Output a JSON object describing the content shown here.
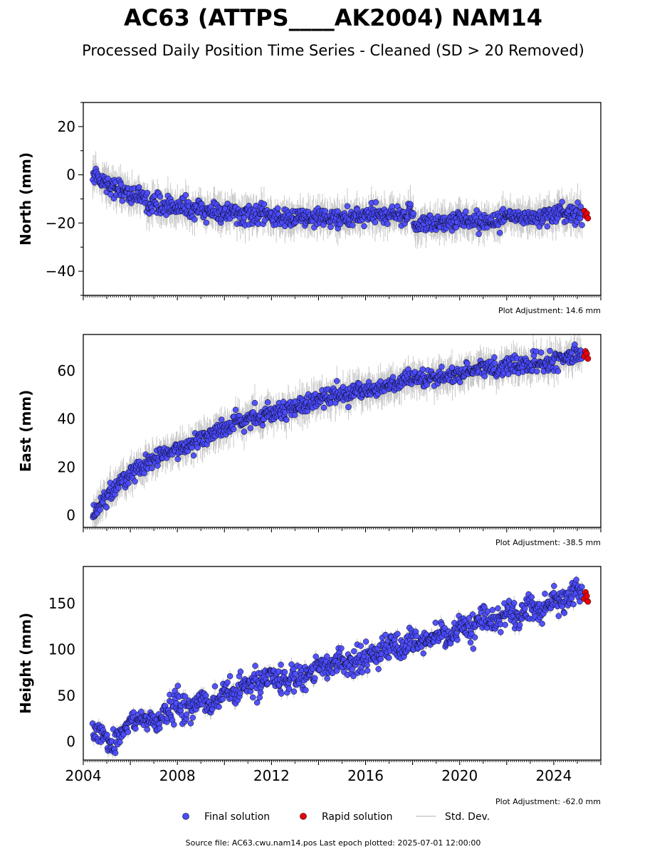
{
  "title": "AC63 (ATTPS____AK2004) NAM14",
  "subtitle": "Processed Daily Position Time Series - Cleaned (SD > 20 Removed)",
  "footer": "Source file: AC63.cwu.nam14.pos  Last epoch plotted: 2025-07-01 12:00:00",
  "legend": {
    "final": "Final solution",
    "rapid": "Rapid solution",
    "std": "Std. Dev."
  },
  "colors": {
    "final": "#4b4bff",
    "rapid": "#e8000b",
    "std": "#c8c8c8",
    "edge": "#000000"
  },
  "chart_data": [
    {
      "type": "scatter",
      "ylabel": "North (mm)",
      "note": "Plot Adjustment: 14.6 mm",
      "xlim": [
        2004.0,
        2026.0
      ],
      "ylim": [
        -50,
        30
      ],
      "yticks": [
        -40,
        -20,
        0,
        20
      ],
      "x_ticks_labeled": false,
      "series": [
        {
          "name": "Final solution",
          "x": [
            2004.4,
            2004.6,
            2004.8,
            2005.0,
            2005.3,
            2005.6,
            2006.0,
            2006.5,
            2007.0,
            2007.5,
            2008.0,
            2008.5,
            2009.0,
            2009.5,
            2010.0,
            2010.5,
            2011.0,
            2011.5,
            2012.0,
            2012.5,
            2013.0,
            2013.5,
            2014.0,
            2014.5,
            2015.0,
            2015.5,
            2016.0,
            2016.5,
            2017.0,
            2017.5,
            2017.9,
            2018.1,
            2018.5,
            2019.0,
            2019.5,
            2020.0,
            2020.5,
            2021.0,
            2021.5,
            2022.0,
            2022.5,
            2023.0,
            2023.5,
            2024.0,
            2024.5,
            2025.0,
            2025.2
          ],
          "y": [
            0.0,
            0.0,
            -2.0,
            -4.0,
            -5.0,
            -6.0,
            -8.0,
            -10.0,
            -12.0,
            -13.0,
            -13.0,
            -14.0,
            -15.0,
            -15.0,
            -16.0,
            -16.0,
            -17.0,
            -17.0,
            -17.0,
            -18.0,
            -18.0,
            -18.0,
            -18.0,
            -18.0,
            -18.0,
            -18.0,
            -17.0,
            -17.0,
            -17.0,
            -17.0,
            -16.0,
            -20.0,
            -20.0,
            -20.0,
            -19.0,
            -19.0,
            -19.0,
            -19.0,
            -19.0,
            -18.0,
            -18.0,
            -17.0,
            -17.0,
            -16.0,
            -16.0,
            -16.0,
            -16.0
          ],
          "scatter": 2.0
        },
        {
          "name": "Rapid solution",
          "x": [
            2025.3,
            2025.35,
            2025.4,
            2025.45
          ],
          "y": [
            -15.0,
            -17.0,
            -16.0,
            -18.0
          ]
        }
      ]
    },
    {
      "type": "scatter",
      "ylabel": "East (mm)",
      "note": "Plot Adjustment: -38.5 mm",
      "xlim": [
        2004.0,
        2026.0
      ],
      "ylim": [
        -5,
        75
      ],
      "yticks": [
        0,
        20,
        40,
        60
      ],
      "x_ticks_labeled": false,
      "series": [
        {
          "name": "Final solution",
          "x": [
            2004.4,
            2004.6,
            2004.8,
            2005.0,
            2005.3,
            2005.6,
            2006.0,
            2006.5,
            2007.0,
            2007.5,
            2008.0,
            2008.5,
            2009.0,
            2009.5,
            2010.0,
            2010.5,
            2011.0,
            2011.5,
            2012.0,
            2012.5,
            2013.0,
            2013.5,
            2014.0,
            2014.5,
            2015.0,
            2015.5,
            2016.0,
            2016.5,
            2017.0,
            2017.5,
            2018.0,
            2018.5,
            2019.0,
            2019.5,
            2020.0,
            2020.5,
            2021.0,
            2021.5,
            2022.0,
            2022.5,
            2023.0,
            2023.5,
            2024.0,
            2024.5,
            2025.0,
            2025.2
          ],
          "y": [
            1.0,
            3.0,
            5.0,
            8.0,
            11.0,
            14.0,
            17.0,
            20.0,
            23.0,
            25.0,
            27.0,
            30.0,
            32.0,
            34.0,
            36.0,
            38.0,
            40.0,
            41.0,
            43.0,
            44.0,
            45.0,
            46.0,
            48.0,
            49.0,
            50.0,
            51.0,
            52.0,
            53.0,
            54.0,
            55.0,
            56.0,
            56.0,
            57.0,
            58.0,
            59.0,
            60.0,
            61.0,
            61.0,
            62.0,
            62.0,
            63.0,
            63.0,
            64.0,
            65.0,
            67.0,
            68.0
          ],
          "scatter": 1.8
        },
        {
          "name": "Rapid solution",
          "x": [
            2025.3,
            2025.35,
            2025.4,
            2025.45
          ],
          "y": [
            66.0,
            68.0,
            67.0,
            65.0
          ]
        }
      ]
    },
    {
      "type": "scatter",
      "ylabel": "Height (mm)",
      "note": "Plot Adjustment: -62.0 mm",
      "xlim": [
        2004.0,
        2026.0
      ],
      "ylim": [
        -20,
        190
      ],
      "yticks": [
        0,
        50,
        100,
        150
      ],
      "xticks": [
        2004,
        2008,
        2012,
        2016,
        2020,
        2024
      ],
      "x_ticks_labeled": true,
      "series": [
        {
          "name": "Final solution",
          "x": [
            2004.4,
            2004.7,
            2005.0,
            2005.3,
            2005.7,
            2006.0,
            2006.5,
            2007.0,
            2007.5,
            2008.0,
            2008.5,
            2009.0,
            2009.5,
            2010.0,
            2010.5,
            2011.0,
            2011.5,
            2012.0,
            2012.5,
            2013.0,
            2013.5,
            2014.0,
            2014.5,
            2015.0,
            2015.5,
            2016.0,
            2016.5,
            2017.0,
            2017.5,
            2018.0,
            2018.5,
            2019.0,
            2019.5,
            2020.0,
            2020.5,
            2021.0,
            2021.5,
            2022.0,
            2022.5,
            2023.0,
            2023.5,
            2024.0,
            2024.5,
            2025.0,
            2025.2
          ],
          "y": [
            5.0,
            15.0,
            0.0,
            -5.0,
            15.0,
            20.0,
            25.0,
            20.0,
            30.0,
            40.0,
            35.0,
            45.0,
            40.0,
            55.0,
            50.0,
            65.0,
            60.0,
            70.0,
            65.0,
            75.0,
            70.0,
            85.0,
            80.0,
            90.0,
            85.0,
            95.0,
            95.0,
            105.0,
            100.0,
            110.0,
            105.0,
            115.0,
            110.0,
            125.0,
            120.0,
            135.0,
            125.0,
            145.0,
            135.0,
            150.0,
            140.0,
            155.0,
            150.0,
            165.0,
            160.0
          ],
          "scatter": 7.0
        },
        {
          "name": "Rapid solution",
          "x": [
            2025.3,
            2025.35,
            2025.4,
            2025.45
          ],
          "y": [
            155.0,
            162.0,
            158.0,
            152.0
          ]
        }
      ]
    }
  ]
}
